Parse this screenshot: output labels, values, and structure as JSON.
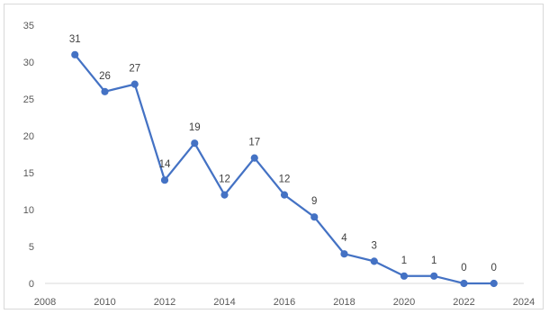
{
  "chart_data": {
    "type": "line",
    "title": "",
    "xlabel": "",
    "ylabel": "",
    "xlim": [
      2008,
      2024
    ],
    "ylim": [
      0,
      35
    ],
    "x_ticks": [
      2008,
      2010,
      2012,
      2014,
      2016,
      2018,
      2020,
      2022,
      2024
    ],
    "y_ticks": [
      0,
      5,
      10,
      15,
      20,
      25,
      30,
      35
    ],
    "grid": "none",
    "legend": "none",
    "series": [
      {
        "color": "#4472c4",
        "marker": "circle",
        "points": [
          {
            "x": 2009,
            "y": 31
          },
          {
            "x": 2010,
            "y": 26
          },
          {
            "x": 2011,
            "y": 27
          },
          {
            "x": 2012,
            "y": 14
          },
          {
            "x": 2013,
            "y": 19
          },
          {
            "x": 2014,
            "y": 12
          },
          {
            "x": 2015,
            "y": 17
          },
          {
            "x": 2016,
            "y": 12
          },
          {
            "x": 2017,
            "y": 9
          },
          {
            "x": 2018,
            "y": 4
          },
          {
            "x": 2019,
            "y": 3
          },
          {
            "x": 2020,
            "y": 1
          },
          {
            "x": 2021,
            "y": 1
          },
          {
            "x": 2022,
            "y": 0
          },
          {
            "x": 2023,
            "y": 0
          }
        ]
      }
    ],
    "axis_color": "#d9d9d9",
    "text_color": "#595959"
  }
}
